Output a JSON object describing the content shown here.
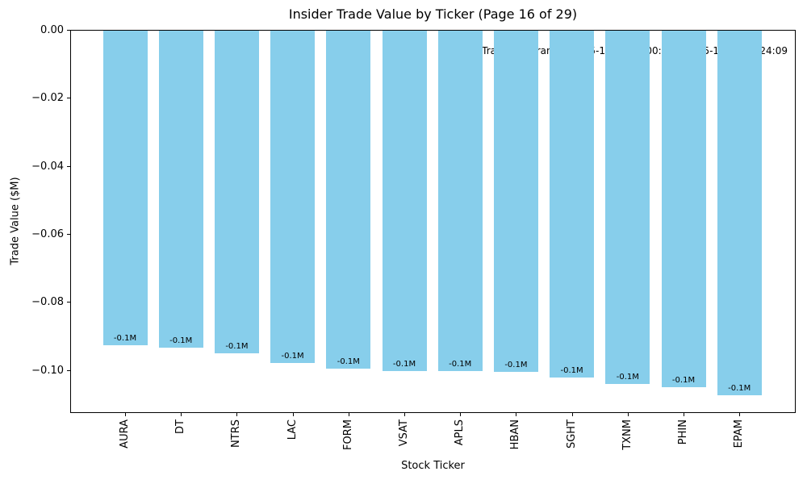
{
  "figure": {
    "title": "Insider Trade Value by Ticker (Page 16 of 29)",
    "xlabel": "Stock Ticker",
    "ylabel": "Trade Value ($M)",
    "annotation": "Trade date range: 2025-11-14 21:00:04 – 2025-11-19 09:24:09"
  },
  "chart_data": {
    "type": "bar",
    "title": "Insider Trade Value by Ticker (Page 16 of 29)",
    "xlabel": "Stock Ticker",
    "ylabel": "Trade Value ($M)",
    "categories": [
      "AURA",
      "DT",
      "NTRS",
      "LAC",
      "FORM",
      "VSAT",
      "APLS",
      "HBAN",
      "SGHT",
      "TXNM",
      "PHIN",
      "EPAM"
    ],
    "values": [
      -0.0925,
      -0.0932,
      -0.0949,
      -0.0978,
      -0.0994,
      -0.1001,
      -0.1002,
      -0.1003,
      -0.102,
      -0.104,
      -0.1049,
      -0.1073
    ],
    "bar_labels": [
      "-0.1M",
      "-0.1M",
      "-0.1M",
      "-0.1M",
      "-0.1M",
      "-0.1M",
      "-0.1M",
      "-0.1M",
      "-0.1M",
      "-0.1M",
      "-0.1M",
      "-0.1M"
    ],
    "ytick_values": [
      0,
      -0.02,
      -0.04,
      -0.06,
      -0.08,
      -0.1
    ],
    "ytick_labels": [
      "0.00",
      "−0.02",
      "−0.04",
      "−0.06",
      "−0.08",
      "−0.10"
    ],
    "ylim": [
      -0.1122,
      0
    ],
    "grid": false,
    "legend_position": "none",
    "bar_color": "#87CEEB",
    "annotation": "Trade date range: 2025-11-14 21:00:04 – 2025-11-19 09:24:09"
  }
}
